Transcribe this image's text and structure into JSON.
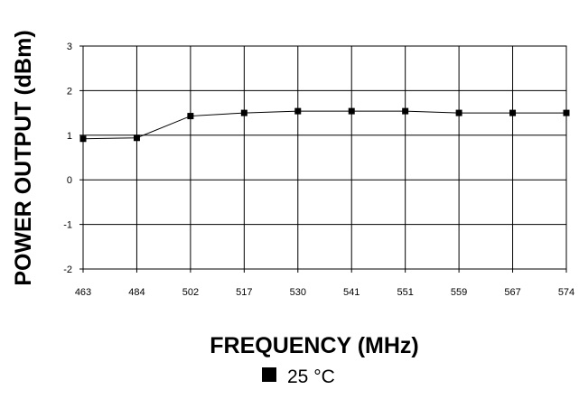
{
  "chart_data": {
    "type": "line",
    "categories": [
      "463",
      "484",
      "502",
      "517",
      "530",
      "541",
      "551",
      "559",
      "567",
      "574"
    ],
    "series": [
      {
        "name": "25 °C",
        "values": [
          0.92,
          0.94,
          1.43,
          1.5,
          1.54,
          1.54,
          1.54,
          1.5,
          1.5,
          1.5
        ],
        "color": "#000000",
        "marker": "square"
      }
    ],
    "xlabel": "FREQUENCY (MHz)",
    "ylabel": "POWER OUTPUT (dBm)",
    "ylim": [
      -2,
      3
    ],
    "yticks": [
      "-2",
      "-1",
      "0",
      "1",
      "2",
      "3"
    ],
    "grid": true,
    "legend_position": "bottom-center"
  }
}
